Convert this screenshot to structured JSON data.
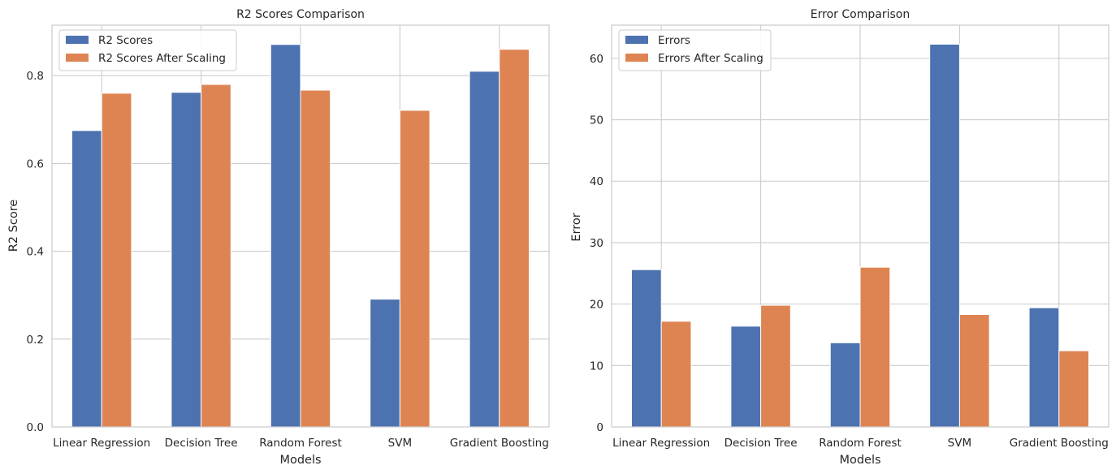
{
  "chart_data": [
    {
      "type": "bar",
      "title": "R2 Scores Comparison",
      "xlabel": "Models",
      "ylabel": "R2 Score",
      "categories": [
        "Linear Regression",
        "Decision Tree",
        "Random Forest",
        "SVM",
        "Gradient Boosting"
      ],
      "series": [
        {
          "name": "R2 Scores",
          "color": "#4c72b0",
          "values": [
            0.675,
            0.762,
            0.871,
            0.291,
            0.81
          ]
        },
        {
          "name": "R2 Scores After Scaling",
          "color": "#dd8452",
          "values": [
            0.76,
            0.78,
            0.767,
            0.721,
            0.86
          ]
        }
      ],
      "ylim": [
        0,
        0.915
      ],
      "yticks": [
        0.0,
        0.2,
        0.4,
        0.6,
        0.8
      ],
      "ytick_labels": [
        "0.0",
        "0.2",
        "0.4",
        "0.6",
        "0.8"
      ],
      "grid": true,
      "legend_position": "top-left"
    },
    {
      "type": "bar",
      "title": "Error Comparison",
      "xlabel": "Models",
      "ylabel": "Error",
      "categories": [
        "Linear Regression",
        "Decision Tree",
        "Random Forest",
        "SVM",
        "Gradient Boosting"
      ],
      "series": [
        {
          "name": "Errors",
          "color": "#4c72b0",
          "values": [
            25.6,
            16.4,
            13.7,
            62.3,
            19.4
          ]
        },
        {
          "name": "Errors After Scaling",
          "color": "#dd8452",
          "values": [
            17.2,
            19.8,
            26.0,
            18.3,
            12.4
          ]
        }
      ],
      "ylim": [
        0,
        65.4
      ],
      "yticks": [
        0,
        10,
        20,
        30,
        40,
        50,
        60
      ],
      "ytick_labels": [
        "0",
        "10",
        "20",
        "30",
        "40",
        "50",
        "60"
      ],
      "grid": true,
      "legend_position": "top-left"
    }
  ]
}
